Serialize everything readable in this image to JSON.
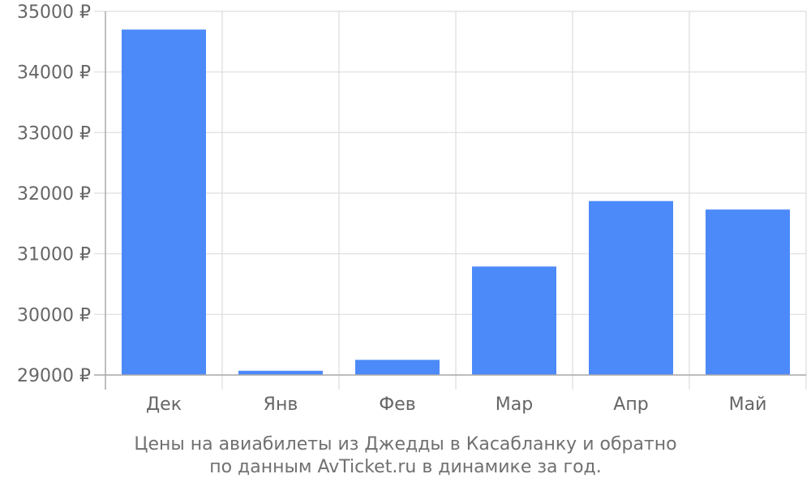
{
  "chart_data": {
    "type": "bar",
    "categories": [
      "Дек",
      "Янв",
      "Фев",
      "Мар",
      "Апр",
      "Май"
    ],
    "values": [
      34700,
      29070,
      29250,
      30790,
      31870,
      31730
    ],
    "ylim": [
      29000,
      35000
    ],
    "yticks": [
      29000,
      30000,
      31000,
      32000,
      33000,
      34000,
      35000
    ],
    "y_unit_suffix": " ₽",
    "bar_color": "#4d8af9",
    "grid": true,
    "legend": "none"
  },
  "caption": {
    "line1": "Цены на авиабилеты из Джедды в Касабланку и обратно",
    "line2": "по данным AvTicket.ru в динамике за год."
  }
}
